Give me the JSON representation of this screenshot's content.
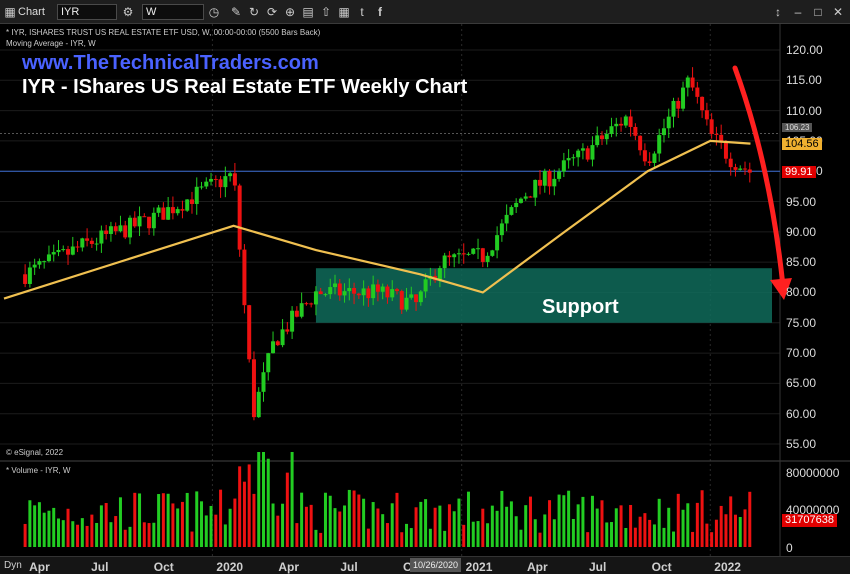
{
  "toolbar": {
    "chart_label": "Chart",
    "symbol_value": "IYR",
    "interval_value": "W",
    "window_controls": [
      "↕",
      "–",
      "□",
      "✕"
    ]
  },
  "chart_info": {
    "line1": "* IYR, ISHARES TRUST US REAL ESTATE ETF USD, W, 00:00-00:00 (5500 Bars Back)",
    "line2": "Moving Average - IYR, W",
    "website": "www.TheTechnicalTraders.com",
    "title": "IYR - IShares US Real Estate ETF Weekly Chart",
    "support_label": "Support",
    "esignal": "© eSignal, 2022",
    "volume_label": "* Volume - IYR, W"
  },
  "price_axis": {
    "ticks": [
      "120.00",
      "115.00",
      "110.00",
      "105.00",
      "100.00",
      "95.00",
      "90.00",
      "85.00",
      "80.00",
      "75.00",
      "70.00",
      "65.00",
      "60.00",
      "55.00"
    ],
    "tags": [
      {
        "text": "106.23",
        "bg": "#555555",
        "fg": "#dddddd"
      },
      {
        "text": "104.56",
        "bg": "#f0b030",
        "fg": "#000000"
      },
      {
        "text": "99.91",
        "bg": "#e00000",
        "fg": "#ffffff"
      }
    ]
  },
  "volume_axis": {
    "ticks": [
      "80000000",
      "40000000",
      "0"
    ],
    "tag": {
      "text": "31707638",
      "bg": "#e00000",
      "fg": "#ffffff"
    }
  },
  "date_axis": {
    "dyn_label": "Dyn",
    "labels": [
      "Apr",
      "Jul",
      "Oct",
      "2020",
      "Apr",
      "Jul",
      "Oct",
      "2021",
      "Apr",
      "Jul",
      "Oct",
      "2022"
    ],
    "cursor_date": "10/26/2020"
  },
  "colors": {
    "up": "#22cc22",
    "down": "#ee1111",
    "ma": "#f0c050",
    "support_zone": "#0f6b5a",
    "arrow": "#ff2020",
    "website": "#4a62ff",
    "hline": "#3a6bd0"
  },
  "chart_data": {
    "type": "candlestick",
    "interval": "weekly",
    "date_range": [
      "2019-03",
      "2022-03"
    ],
    "y_range": [
      52,
      123
    ],
    "grid": true,
    "close_path": [
      [
        "2019-04",
        83
      ],
      [
        "2019-07",
        88
      ],
      [
        "2019-10",
        92
      ],
      [
        "2020-02",
        99.5
      ],
      [
        "2020-03",
        60
      ],
      [
        "2020-04",
        72
      ],
      [
        "2020-06",
        80
      ],
      [
        "2020-09",
        80
      ],
      [
        "2020-10-26",
        78
      ],
      [
        "2020-12",
        85
      ],
      [
        "2021-02",
        86
      ],
      [
        "2021-04",
        96
      ],
      [
        "2021-07",
        103
      ],
      [
        "2021-09",
        109
      ],
      [
        "2021-10",
        102
      ],
      [
        "2021-12",
        115
      ],
      [
        "2022-01",
        106
      ],
      [
        "2022-02",
        102
      ],
      [
        "2022-03",
        99.91
      ]
    ],
    "moving_average_path": [
      [
        "2019-03",
        79
      ],
      [
        "2020-02",
        91
      ],
      [
        "2020-06",
        87
      ],
      [
        "2020-11",
        83
      ],
      [
        "2021-02",
        80
      ],
      [
        "2021-06",
        90
      ],
      [
        "2021-10",
        100
      ],
      [
        "2022-01",
        105
      ],
      [
        "2022-03",
        104.56
      ]
    ],
    "last_price": 99.91,
    "moving_average_last": 104.56,
    "marker_level": 106.23,
    "horizontal_line": 100,
    "support_zone": [
      75,
      84
    ],
    "volume_last": 31707638,
    "volume_range": [
      0,
      90000000
    ]
  }
}
